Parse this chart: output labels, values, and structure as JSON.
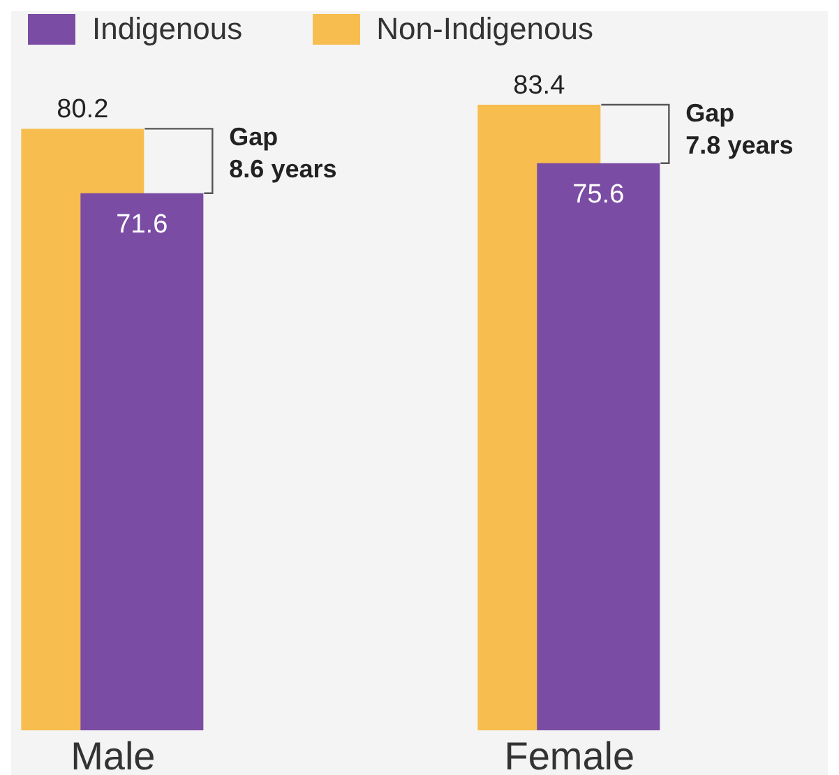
{
  "chart_data": {
    "type": "bar",
    "categories": [
      "Male",
      "Female"
    ],
    "series": [
      {
        "name": "Indigenous",
        "color": "#7a4ca4",
        "values": [
          71.6,
          75.6
        ]
      },
      {
        "name": "Non-Indigenous",
        "color": "#f7bd4e",
        "values": [
          80.2,
          83.4
        ]
      }
    ],
    "data_labels": true,
    "legend": "top left",
    "grid": false,
    "annotations": [
      "Gap 8.6 years",
      "Gap 7.8 years"
    ]
  }
}
